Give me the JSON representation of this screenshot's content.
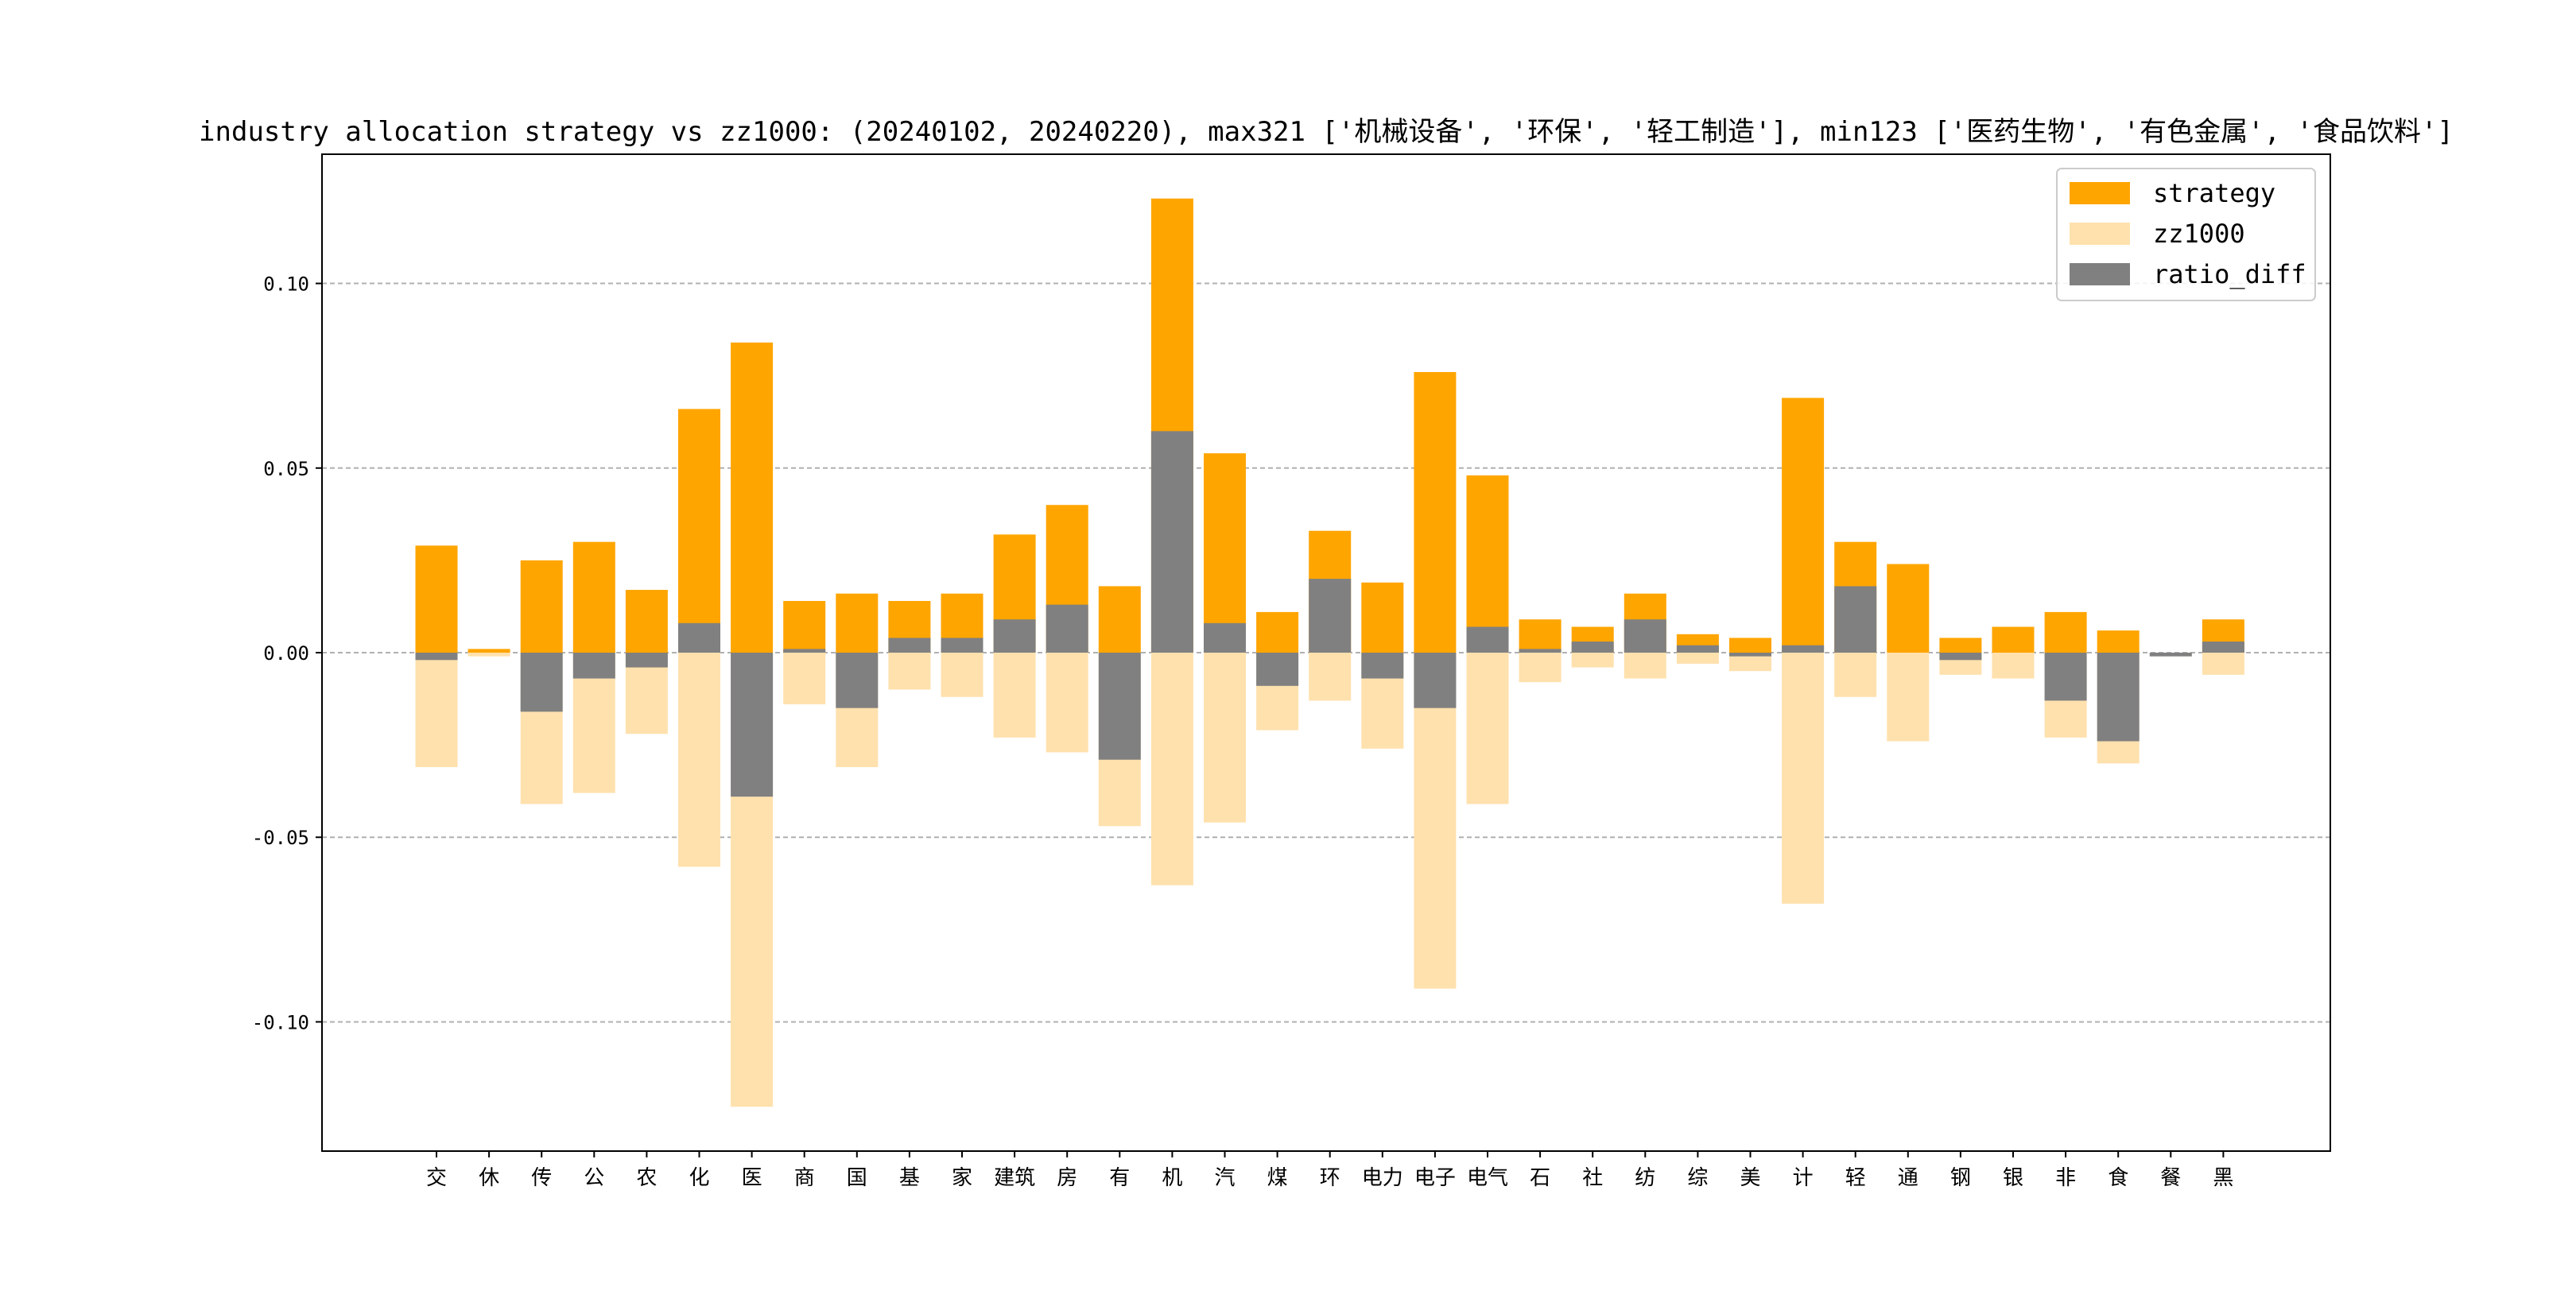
{
  "chart_data": {
    "type": "bar",
    "title": "industry allocation strategy vs zz1000: (20240102, 20240220), max321 ['机械设备', '环保', '轻工制造'], min123 ['医药生物', '有色金属', '食品饮料']",
    "xlabel": "",
    "ylabel": "",
    "ylim": [
      -0.135,
      0.135
    ],
    "grid": "y-dashed",
    "legend_position": "top-right",
    "yticks": [
      "0.10",
      "0.05",
      "0.00",
      "-0.05",
      "-0.10"
    ],
    "ytick_values": [
      0.1,
      0.05,
      0.0,
      -0.05,
      -0.1
    ],
    "categories": [
      "交",
      "休",
      "传",
      "公",
      "农",
      "化",
      "医",
      "商",
      "国",
      "基",
      "家",
      "建筑",
      "房",
      "有",
      "机",
      "汽",
      "煤",
      "环",
      "电力",
      "电子",
      "电气",
      "石",
      "社",
      "纺",
      "综",
      "美",
      "计",
      "轻",
      "通",
      "钢",
      "银",
      "非",
      "食",
      "餐",
      "黑"
    ],
    "series": [
      {
        "name": "strategy",
        "color": "#FFA500",
        "values": [
          0.029,
          0.001,
          0.025,
          0.03,
          0.017,
          0.066,
          0.084,
          0.014,
          0.016,
          0.014,
          0.016,
          0.032,
          0.04,
          0.018,
          0.123,
          0.054,
          0.011,
          0.033,
          0.019,
          0.076,
          0.048,
          0.009,
          0.007,
          0.016,
          0.005,
          0.004,
          0.069,
          0.03,
          0.024,
          0.004,
          0.007,
          0.011,
          0.006,
          0.0,
          0.009
        ]
      },
      {
        "name": "zz1000",
        "color": "#FFE1AE",
        "values": [
          -0.031,
          -0.001,
          -0.041,
          -0.038,
          -0.022,
          -0.058,
          -0.123,
          -0.014,
          -0.031,
          -0.01,
          -0.012,
          -0.023,
          -0.027,
          -0.047,
          -0.063,
          -0.046,
          -0.021,
          -0.013,
          -0.026,
          -0.091,
          -0.041,
          -0.008,
          -0.004,
          -0.007,
          -0.003,
          -0.005,
          -0.068,
          -0.012,
          -0.024,
          -0.006,
          -0.007,
          -0.023,
          -0.03,
          -0.001,
          -0.006
        ]
      },
      {
        "name": "ratio_diff",
        "color": "#808080",
        "values": [
          -0.002,
          0.0,
          -0.016,
          -0.007,
          -0.004,
          0.008,
          -0.039,
          0.001,
          -0.015,
          0.004,
          0.004,
          0.009,
          0.013,
          -0.029,
          0.06,
          0.008,
          -0.009,
          0.02,
          -0.007,
          -0.015,
          0.007,
          0.001,
          0.003,
          0.009,
          0.002,
          -0.001,
          0.002,
          0.018,
          0.0,
          -0.002,
          0.0,
          -0.013,
          -0.024,
          -0.001,
          0.003
        ]
      }
    ]
  }
}
